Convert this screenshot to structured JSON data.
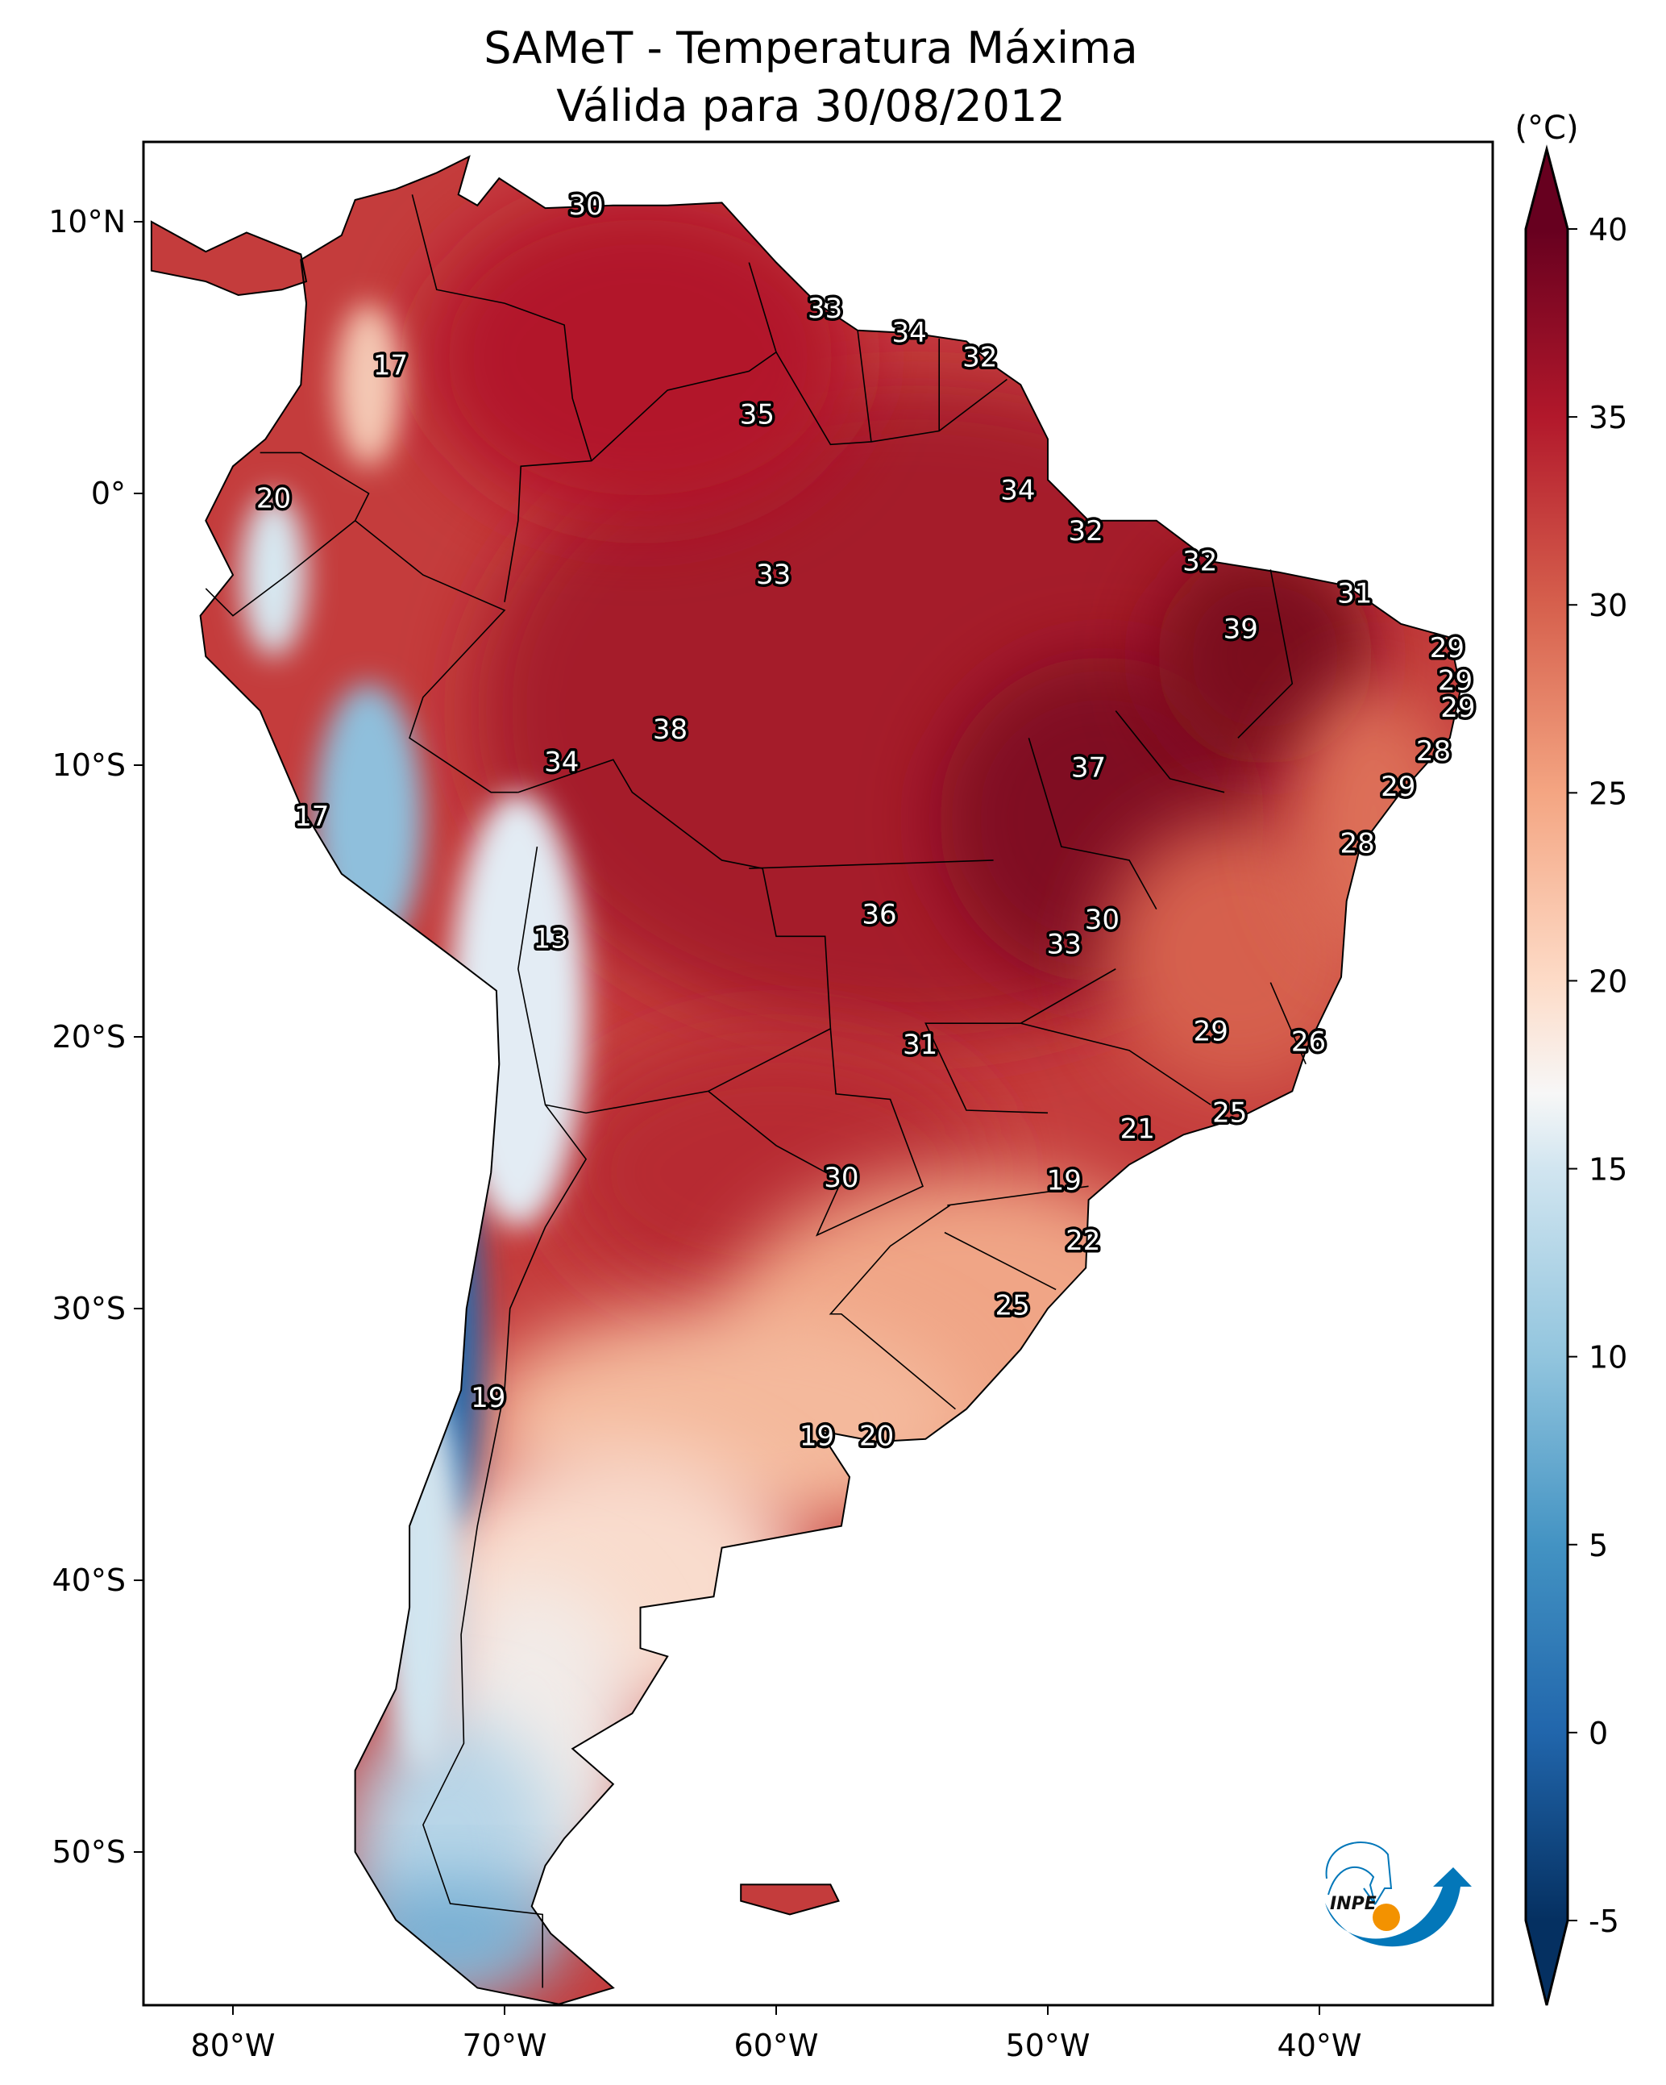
{
  "chart_data": {
    "type": "heatmap",
    "title": "SAMeT - Temperatura Máxima",
    "subtitle": "Válida para 30/08/2012",
    "colorbar": {
      "unit": "(°C)",
      "ticks": [
        -5,
        0,
        5,
        10,
        15,
        20,
        25,
        30,
        35,
        40
      ],
      "range": [
        -5,
        40
      ],
      "extend": "both",
      "colormap": "RdBu_r",
      "colors": {
        "40": "#67001f",
        "35": "#b2182b",
        "30": "#d6604d",
        "25": "#f4a582",
        "20": "#fddbc7",
        "17": "#f7f7f7",
        "15": "#d1e5f0",
        "10": "#92c5de",
        "5": "#4393c3",
        "0": "#2166ac",
        "-5": "#053061"
      }
    },
    "x_ticks": [
      {
        "lon": -80,
        "label": "80°W"
      },
      {
        "lon": -70,
        "label": "70°W"
      },
      {
        "lon": -60,
        "label": "60°W"
      },
      {
        "lon": -50,
        "label": "50°W"
      },
      {
        "lon": -40,
        "label": "40°W"
      }
    ],
    "y_ticks": [
      {
        "lat": 10,
        "label": "10°N"
      },
      {
        "lat": 0,
        "label": "0°"
      },
      {
        "lat": -10,
        "label": "10°S"
      },
      {
        "lat": -20,
        "label": "20°S"
      },
      {
        "lat": -30,
        "label": "30°S"
      },
      {
        "lat": -40,
        "label": "40°S"
      },
      {
        "lat": -50,
        "label": "50°S"
      }
    ],
    "xlim": [
      -83,
      -33
    ],
    "ylim": [
      -56,
      13
    ],
    "labels": [
      {
        "lon": -67.0,
        "lat": 10.6,
        "value": "30"
      },
      {
        "lon": -58.2,
        "lat": 6.8,
        "value": "33"
      },
      {
        "lon": -55.1,
        "lat": 5.9,
        "value": "34"
      },
      {
        "lon": -52.5,
        "lat": 5.0,
        "value": "32"
      },
      {
        "lon": -74.2,
        "lat": 4.7,
        "value": "17"
      },
      {
        "lon": -60.7,
        "lat": 2.9,
        "value": "35"
      },
      {
        "lon": -78.5,
        "lat": -0.2,
        "value": "20"
      },
      {
        "lon": -51.1,
        "lat": 0.1,
        "value": "34"
      },
      {
        "lon": -48.6,
        "lat": -1.4,
        "value": "32"
      },
      {
        "lon": -60.1,
        "lat": -3.0,
        "value": "33"
      },
      {
        "lon": -44.4,
        "lat": -2.5,
        "value": "32"
      },
      {
        "lon": -38.7,
        "lat": -3.7,
        "value": "31"
      },
      {
        "lon": -42.9,
        "lat": -5.0,
        "value": "39"
      },
      {
        "lon": -35.3,
        "lat": -5.7,
        "value": "29"
      },
      {
        "lon": -35.0,
        "lat": -6.9,
        "value": "29"
      },
      {
        "lon": -34.9,
        "lat": -7.9,
        "value": "29"
      },
      {
        "lon": -63.9,
        "lat": -8.7,
        "value": "38"
      },
      {
        "lon": -67.9,
        "lat": -9.9,
        "value": "34"
      },
      {
        "lon": -35.8,
        "lat": -9.5,
        "value": "28"
      },
      {
        "lon": -48.5,
        "lat": -10.1,
        "value": "37"
      },
      {
        "lon": -37.1,
        "lat": -10.8,
        "value": "29"
      },
      {
        "lon": -77.1,
        "lat": -11.9,
        "value": "17"
      },
      {
        "lon": -38.6,
        "lat": -12.9,
        "value": "28"
      },
      {
        "lon": -56.2,
        "lat": -15.5,
        "value": "36"
      },
      {
        "lon": -48.0,
        "lat": -15.7,
        "value": "30"
      },
      {
        "lon": -68.3,
        "lat": -16.4,
        "value": "13"
      },
      {
        "lon": -49.4,
        "lat": -16.6,
        "value": "33"
      },
      {
        "lon": -44.0,
        "lat": -19.8,
        "value": "29"
      },
      {
        "lon": -40.4,
        "lat": -20.2,
        "value": "26"
      },
      {
        "lon": -54.7,
        "lat": -20.3,
        "value": "31"
      },
      {
        "lon": -43.3,
        "lat": -22.8,
        "value": "25"
      },
      {
        "lon": -46.7,
        "lat": -23.4,
        "value": "21"
      },
      {
        "lon": -57.6,
        "lat": -25.2,
        "value": "30"
      },
      {
        "lon": -49.4,
        "lat": -25.3,
        "value": "19"
      },
      {
        "lon": -48.7,
        "lat": -27.5,
        "value": "22"
      },
      {
        "lon": -51.3,
        "lat": -29.9,
        "value": "25"
      },
      {
        "lon": -70.6,
        "lat": -33.3,
        "value": "19"
      },
      {
        "lon": -58.5,
        "lat": -34.7,
        "value": "19"
      },
      {
        "lon": -56.3,
        "lat": -34.7,
        "value": "20"
      }
    ]
  },
  "logo": {
    "text": "INPE",
    "colors": {
      "blue": "#0377b9",
      "orange": "#f39200"
    }
  }
}
